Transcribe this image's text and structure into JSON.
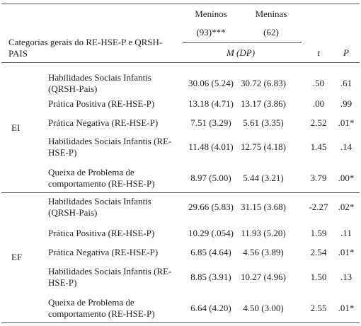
{
  "header": {
    "category": "Categorias gerais do RE-HSE-P e QRSH-PAIS",
    "boys": "Meninos",
    "girls": "Meninas",
    "boys_n": "(93)***",
    "girls_n": "(62)",
    "stat": "M (DP)",
    "t": "t",
    "p": "P"
  },
  "groups": [
    {
      "name": "EI",
      "rows": [
        [
          "Habilidades Sociais Infantis (QRSH-Pais)",
          "30.06 (5.24)",
          "30.72 (6.83)",
          ".50",
          ".61"
        ],
        [
          "Prática Positiva (RE-HSE-P)",
          "13.18 (4.71)",
          "13.17 (3.86)",
          ".00",
          ".99"
        ],
        [
          "Prática Negativa (RE-HSE-P)",
          "7.51 (3.29)",
          "5.61 (3.35)",
          "2.52",
          ".01*"
        ],
        [
          "Habilidades Sociais Infantis (RE-HSE-P)",
          "11.48 (4.01)",
          "12.75 (4.18)",
          "1.45",
          ".14"
        ],
        [
          "Queixa de Problema de comportamento (RE-HSE-P)",
          "8.97 (5.00)",
          "5.44 (3.21)",
          "3.79",
          ".00*"
        ]
      ]
    },
    {
      "name": "EF",
      "rows": [
        [
          "Habilidades Sociais Infantis (QRSH-Pais)",
          "29.66 (5.83)",
          "31.15 (3.68)",
          "-2.27",
          ".02*"
        ],
        [
          "Prática Positiva (RE-HSE-P)",
          "10.29 (.054)",
          "11.93 (5.20)",
          "1.59",
          ".11"
        ],
        [
          "Prática Negativa (RE-HSE-P)",
          "6.85 (4.64)",
          "4.56 (3.89)",
          "2.54",
          ".01*"
        ],
        [
          "Habilidades Sociais Infantis (RE-HSE-P)",
          "8.85 (3.91)",
          "10.27 (4.96)",
          "1.50",
          ".13"
        ],
        [
          "Queixa de Problema de comportamento (RE-HSE-P)",
          "6.64 (4.20)",
          "4.50 (3.00)",
          "2.55",
          ".01*"
        ]
      ]
    }
  ]
}
